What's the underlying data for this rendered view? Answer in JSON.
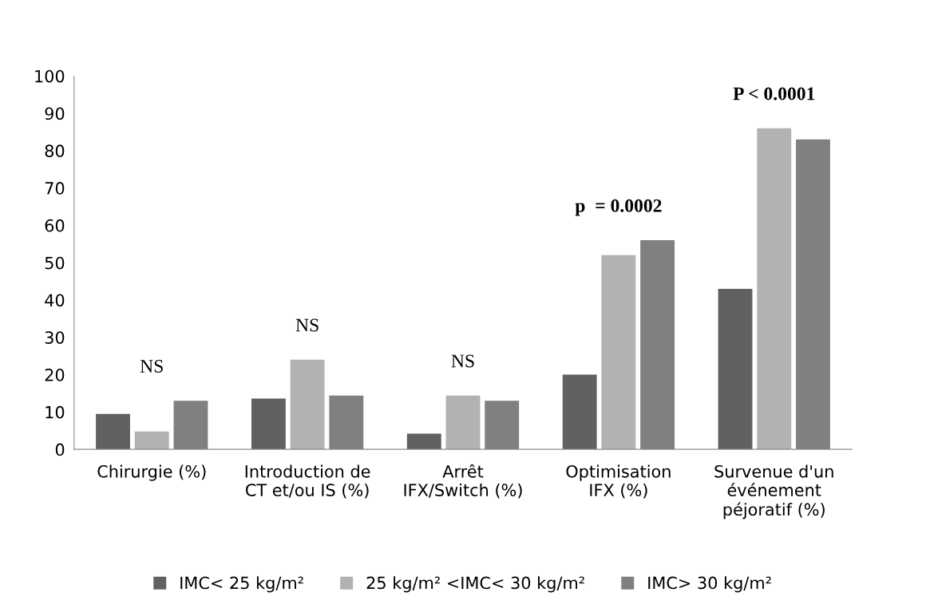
{
  "chart_data": {
    "type": "bar",
    "categories": [
      "Chirurgie (%)",
      "Introduction de\nCT et/ou IS (%)",
      "Arrêt\nIFX/Switch (%)",
      "Optimisation\nIFX (%)",
      "Survenue d'un\névénement\npéjoratif (%)"
    ],
    "series": [
      {
        "name": "IMC< 25 kg/m²",
        "color": "#616161",
        "values": [
          9.5,
          13.6,
          4.2,
          20,
          43
        ]
      },
      {
        "name": "25 kg/m² <IMC< 30 kg/m²",
        "color": "#b2b2b2",
        "values": [
          4.8,
          24,
          14.4,
          52,
          86
        ]
      },
      {
        "name": "IMC> 30 kg/m²",
        "color": "#808080",
        "values": [
          13,
          14.4,
          13,
          56,
          83
        ]
      }
    ],
    "ylim": [
      0,
      100
    ],
    "yticks": [
      0,
      10,
      20,
      30,
      40,
      50,
      60,
      70,
      80,
      90,
      100
    ],
    "grid": false,
    "legend": "bottom",
    "annotations": [
      "NS",
      "NS",
      "NS",
      "p  = 0.0002",
      "P < 0.0001"
    ]
  }
}
